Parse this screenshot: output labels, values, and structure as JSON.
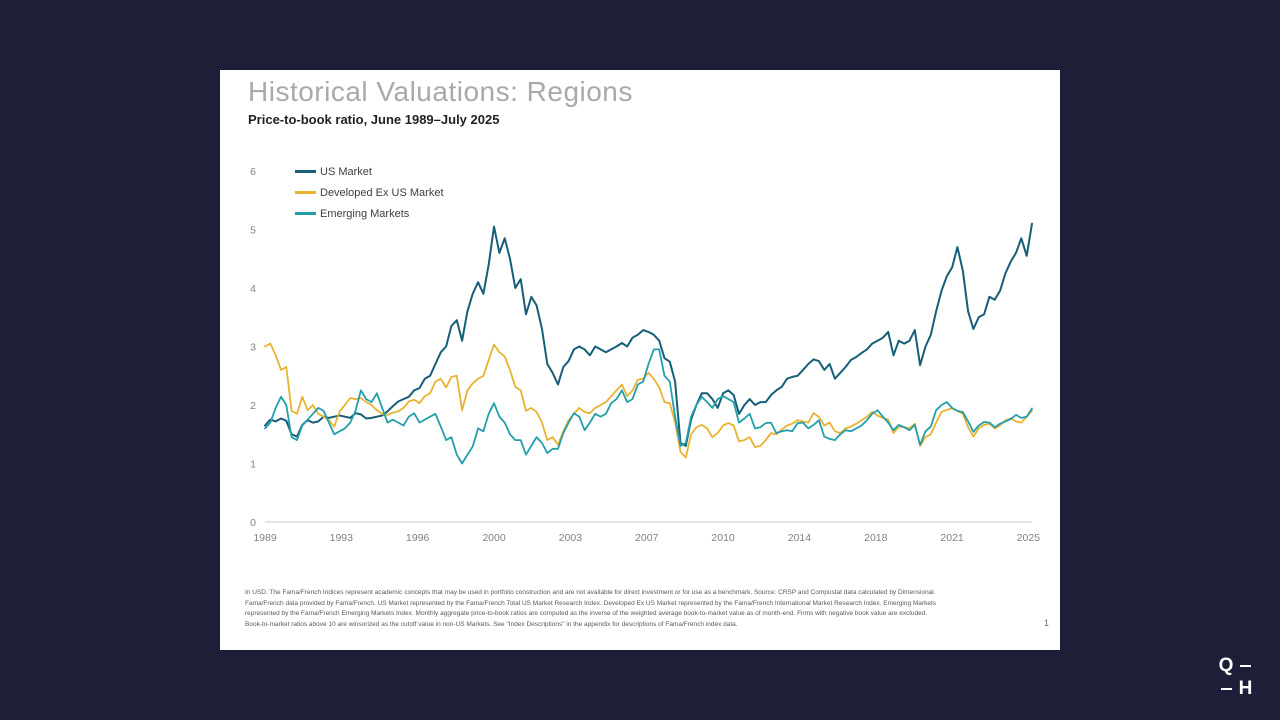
{
  "slide": {
    "title": "Historical Valuations: Regions",
    "subtitle": "Price-to-book ratio, June 1989–July 2025",
    "page_number": "1",
    "footnote_lines": [
      "In USD. The Fama/French Indices represent academic concepts that may be used in portfolio construction and are not available for direct investment or for use as a benchmark. Source: CRSP and Compustat data calculated by Dimensional.",
      "Fama/French data provided by Fama/French. US Market represented by the Fama/French Total US Market Research Index. Developed Ex US Market represented by the Fama/French International Market Research Index. Emerging Markets",
      "represented by the Fama/French Emerging Markets Index. Monthly aggregate price-to-book ratios are computed as the inverse of the weighted average book-to-market value as of month-end. Firms with negative book value are excluded.",
      "Book-to-market ratios above 10 are winsorized as the cutoff value in non-US Markets. See \"Index Descriptions\" in the appendix for descriptions of Fama/French index data."
    ]
  },
  "logo": {
    "q": "Q",
    "h": "H"
  },
  "colors": {
    "background": "#1d1f39",
    "slide": "#ffffff",
    "title": "#a7a9ac",
    "axis_text": "#808285",
    "axis_line": "#c9cacc",
    "us": "#175e78",
    "developed": "#e8b331",
    "emerging": "#229fab"
  },
  "chart_data": {
    "type": "line",
    "title": "Price-to-book ratio, June 1989–July 2025",
    "ylabel": "Price-to-book ratio",
    "xlabel": "",
    "ylim": [
      0,
      6
    ],
    "y_ticks": [
      0,
      1,
      2,
      3,
      4,
      5,
      6
    ],
    "x_start": "June 1989",
    "x_end": "July 2025",
    "sampling": "quarterly",
    "grid": false,
    "legend_position": "top-left",
    "x_tick_labels": [
      "1989",
      "1993",
      "1996",
      "2000",
      "2003",
      "2007",
      "2010",
      "2014",
      "2018",
      "2021",
      "2025"
    ],
    "series": [
      {
        "name": "US Market",
        "color": "#175e78",
        "values": [
          1.65,
          1.75,
          1.72,
          1.77,
          1.73,
          1.5,
          1.46,
          1.66,
          1.74,
          1.7,
          1.72,
          1.8,
          1.78,
          1.8,
          1.82,
          1.8,
          1.78,
          1.86,
          1.84,
          1.77,
          1.78,
          1.8,
          1.82,
          1.89,
          1.98,
          2.06,
          2.1,
          2.14,
          2.25,
          2.29,
          2.45,
          2.5,
          2.7,
          2.9,
          3.0,
          3.35,
          3.45,
          3.1,
          3.6,
          3.9,
          4.1,
          3.9,
          4.4,
          5.05,
          4.6,
          4.85,
          4.5,
          4.0,
          4.15,
          3.55,
          3.85,
          3.7,
          3.3,
          2.7,
          2.55,
          2.35,
          2.65,
          2.75,
          2.95,
          3.0,
          2.95,
          2.85,
          3.0,
          2.95,
          2.9,
          2.95,
          3.0,
          3.06,
          3.0,
          3.15,
          3.2,
          3.28,
          3.25,
          3.2,
          3.1,
          2.8,
          2.74,
          2.4,
          1.35,
          1.3,
          1.75,
          2.0,
          2.2,
          2.2,
          2.1,
          1.95,
          2.2,
          2.25,
          2.17,
          1.85,
          2.0,
          2.1,
          2.0,
          2.05,
          2.05,
          2.17,
          2.25,
          2.31,
          2.45,
          2.48,
          2.5,
          2.6,
          2.7,
          2.78,
          2.75,
          2.6,
          2.7,
          2.45,
          2.55,
          2.65,
          2.77,
          2.82,
          2.89,
          2.95,
          3.05,
          3.1,
          3.15,
          3.25,
          2.85,
          3.1,
          3.05,
          3.1,
          3.28,
          2.68,
          3.0,
          3.2,
          3.6,
          3.95,
          4.2,
          4.35,
          4.7,
          4.3,
          3.6,
          3.3,
          3.5,
          3.55,
          3.85,
          3.8,
          3.95,
          4.25,
          4.45,
          4.6,
          4.85,
          4.55,
          5.1
        ]
      },
      {
        "name": "Developed Ex US Market",
        "color": "#e8b331",
        "values": [
          3.0,
          3.05,
          2.85,
          2.6,
          2.65,
          1.9,
          1.85,
          2.14,
          1.91,
          2.0,
          1.85,
          1.8,
          1.74,
          1.63,
          1.89,
          2.0,
          2.12,
          2.1,
          2.12,
          2.05,
          2.0,
          1.91,
          1.85,
          1.83,
          1.87,
          1.89,
          1.95,
          2.06,
          2.09,
          2.03,
          2.15,
          2.2,
          2.4,
          2.45,
          2.3,
          2.48,
          2.5,
          1.91,
          2.25,
          2.37,
          2.45,
          2.5,
          2.77,
          3.03,
          2.9,
          2.83,
          2.6,
          2.31,
          2.25,
          1.9,
          1.95,
          1.88,
          1.7,
          1.4,
          1.45,
          1.32,
          1.55,
          1.74,
          1.85,
          1.95,
          1.88,
          1.86,
          1.95,
          2.0,
          2.05,
          2.15,
          2.25,
          2.35,
          2.15,
          2.25,
          2.43,
          2.45,
          2.55,
          2.45,
          2.3,
          2.05,
          2.03,
          1.7,
          1.2,
          1.1,
          1.5,
          1.62,
          1.66,
          1.6,
          1.45,
          1.52,
          1.65,
          1.69,
          1.65,
          1.38,
          1.4,
          1.45,
          1.28,
          1.3,
          1.4,
          1.52,
          1.5,
          1.58,
          1.65,
          1.68,
          1.74,
          1.72,
          1.7,
          1.86,
          1.8,
          1.65,
          1.7,
          1.55,
          1.52,
          1.6,
          1.63,
          1.68,
          1.74,
          1.8,
          1.88,
          1.82,
          1.78,
          1.75,
          1.52,
          1.63,
          1.62,
          1.6,
          1.68,
          1.3,
          1.45,
          1.5,
          1.7,
          1.88,
          1.92,
          1.94,
          1.9,
          1.85,
          1.62,
          1.46,
          1.6,
          1.66,
          1.68,
          1.6,
          1.65,
          1.74,
          1.77,
          1.72,
          1.7,
          1.8,
          1.9
        ]
      },
      {
        "name": "Emerging Markets",
        "color": "#229fab",
        "values": [
          1.6,
          1.7,
          1.95,
          2.14,
          2.0,
          1.45,
          1.4,
          1.65,
          1.75,
          1.85,
          1.95,
          1.9,
          1.7,
          1.5,
          1.55,
          1.6,
          1.7,
          1.9,
          2.25,
          2.1,
          2.05,
          2.2,
          1.95,
          1.7,
          1.75,
          1.7,
          1.65,
          1.8,
          1.86,
          1.7,
          1.75,
          1.8,
          1.85,
          1.63,
          1.4,
          1.45,
          1.15,
          1.0,
          1.15,
          1.29,
          1.6,
          1.55,
          1.85,
          2.03,
          1.8,
          1.7,
          1.5,
          1.4,
          1.4,
          1.15,
          1.3,
          1.45,
          1.35,
          1.18,
          1.25,
          1.25,
          1.52,
          1.7,
          1.86,
          1.8,
          1.57,
          1.7,
          1.85,
          1.8,
          1.85,
          2.03,
          2.1,
          2.25,
          2.05,
          2.1,
          2.35,
          2.4,
          2.7,
          2.95,
          2.95,
          2.5,
          2.4,
          1.8,
          1.3,
          1.35,
          1.8,
          2.0,
          2.14,
          2.05,
          1.95,
          2.1,
          2.15,
          2.1,
          2.05,
          1.7,
          1.77,
          1.85,
          1.6,
          1.62,
          1.69,
          1.7,
          1.52,
          1.55,
          1.57,
          1.55,
          1.69,
          1.7,
          1.6,
          1.66,
          1.74,
          1.46,
          1.42,
          1.4,
          1.5,
          1.57,
          1.55,
          1.6,
          1.65,
          1.74,
          1.85,
          1.91,
          1.8,
          1.7,
          1.57,
          1.66,
          1.62,
          1.57,
          1.66,
          1.32,
          1.55,
          1.63,
          1.91,
          2.0,
          2.05,
          1.95,
          1.9,
          1.88,
          1.72,
          1.54,
          1.65,
          1.71,
          1.7,
          1.62,
          1.68,
          1.72,
          1.76,
          1.83,
          1.78,
          1.8,
          1.94
        ]
      }
    ]
  }
}
